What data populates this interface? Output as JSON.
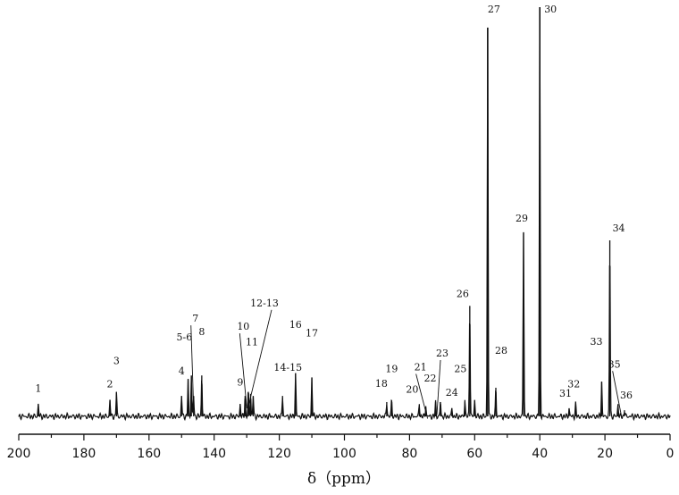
{
  "chart_data": {
    "type": "line",
    "title": "",
    "xlabel": "δ（ppm）",
    "ylabel": "",
    "xlim": [
      200,
      0
    ],
    "x_reversed": true,
    "grid": false,
    "x_ticks": [
      200,
      180,
      160,
      140,
      120,
      100,
      80,
      60,
      40,
      20,
      0
    ],
    "series": [
      {
        "points": [
          {
            "x": 194.0,
            "y": 0.03
          },
          {
            "x": 172.0,
            "y": 0.04
          },
          {
            "x": 170.0,
            "y": 0.06
          },
          {
            "x": 150.0,
            "y": 0.05
          },
          {
            "x": 148.0,
            "y": 0.09
          },
          {
            "x": 147.0,
            "y": 0.1
          },
          {
            "x": 146.3,
            "y": 0.05
          },
          {
            "x": 143.8,
            "y": 0.1
          },
          {
            "x": 132.0,
            "y": 0.03
          },
          {
            "x": 130.5,
            "y": 0.05
          },
          {
            "x": 129.5,
            "y": 0.06
          },
          {
            "x": 128.8,
            "y": 0.055
          },
          {
            "x": 128.0,
            "y": 0.05
          },
          {
            "x": 119.0,
            "y": 0.05
          },
          {
            "x": 115.0,
            "y": 0.105
          },
          {
            "x": 110.0,
            "y": 0.095
          },
          {
            "x": 87.0,
            "y": 0.035
          },
          {
            "x": 85.5,
            "y": 0.04
          },
          {
            "x": 77.0,
            "y": 0.03
          },
          {
            "x": 75.0,
            "y": 0.025
          },
          {
            "x": 72.0,
            "y": 0.035
          },
          {
            "x": 70.5,
            "y": 0.035
          },
          {
            "x": 67.0,
            "y": 0.02
          },
          {
            "x": 63.0,
            "y": 0.04
          },
          {
            "x": 61.5,
            "y": 0.27
          },
          {
            "x": 60.0,
            "y": 0.04
          },
          {
            "x": 56.0,
            "y": 0.95
          },
          {
            "x": 53.5,
            "y": 0.07
          },
          {
            "x": 45.0,
            "y": 0.45
          },
          {
            "x": 40.0,
            "y": 1.0
          },
          {
            "x": 31.0,
            "y": 0.02
          },
          {
            "x": 29.0,
            "y": 0.03
          },
          {
            "x": 21.0,
            "y": 0.085
          },
          {
            "x": 18.5,
            "y": 0.43
          },
          {
            "x": 16.0,
            "y": 0.03
          },
          {
            "x": 14.0,
            "y": 0.015
          }
        ]
      }
    ],
    "peak_labels": [
      {
        "text": "1",
        "ppm": 194.0
      },
      {
        "text": "2",
        "ppm": 172.0
      },
      {
        "text": "3",
        "ppm": 170.0
      },
      {
        "text": "4",
        "ppm": 150.0
      },
      {
        "text": "5-6",
        "ppm": 147.5
      },
      {
        "text": "7",
        "ppm": 146.3
      },
      {
        "text": "8",
        "ppm": 143.8
      },
      {
        "text": "9",
        "ppm": 132.0
      },
      {
        "text": "10",
        "ppm": 130.5
      },
      {
        "text": "11",
        "ppm": 129.5
      },
      {
        "text": "12-13",
        "ppm": 128.4
      },
      {
        "text": "14-15",
        "ppm": 119.0
      },
      {
        "text": "16",
        "ppm": 115.0
      },
      {
        "text": "17",
        "ppm": 110.0
      },
      {
        "text": "18",
        "ppm": 87.0
      },
      {
        "text": "19",
        "ppm": 85.5
      },
      {
        "text": "20",
        "ppm": 77.0
      },
      {
        "text": "21",
        "ppm": 75.0
      },
      {
        "text": "22",
        "ppm": 72.0
      },
      {
        "text": "23",
        "ppm": 70.5
      },
      {
        "text": "24",
        "ppm": 67.0
      },
      {
        "text": "25",
        "ppm": 63.0
      },
      {
        "text": "26",
        "ppm": 61.5
      },
      {
        "text": "27",
        "ppm": 56.0
      },
      {
        "text": "28",
        "ppm": 53.5
      },
      {
        "text": "29",
        "ppm": 45.0
      },
      {
        "text": "30",
        "ppm": 40.0
      },
      {
        "text": "31",
        "ppm": 31.0
      },
      {
        "text": "32",
        "ppm": 29.0
      },
      {
        "text": "33",
        "ppm": 21.0
      },
      {
        "text": "34",
        "ppm": 18.5
      },
      {
        "text": "35",
        "ppm": 16.0
      },
      {
        "text": "36",
        "ppm": 14.0
      }
    ],
    "colors": {
      "line": "#111111",
      "axis": "#111111",
      "background": "#ffffff"
    }
  }
}
